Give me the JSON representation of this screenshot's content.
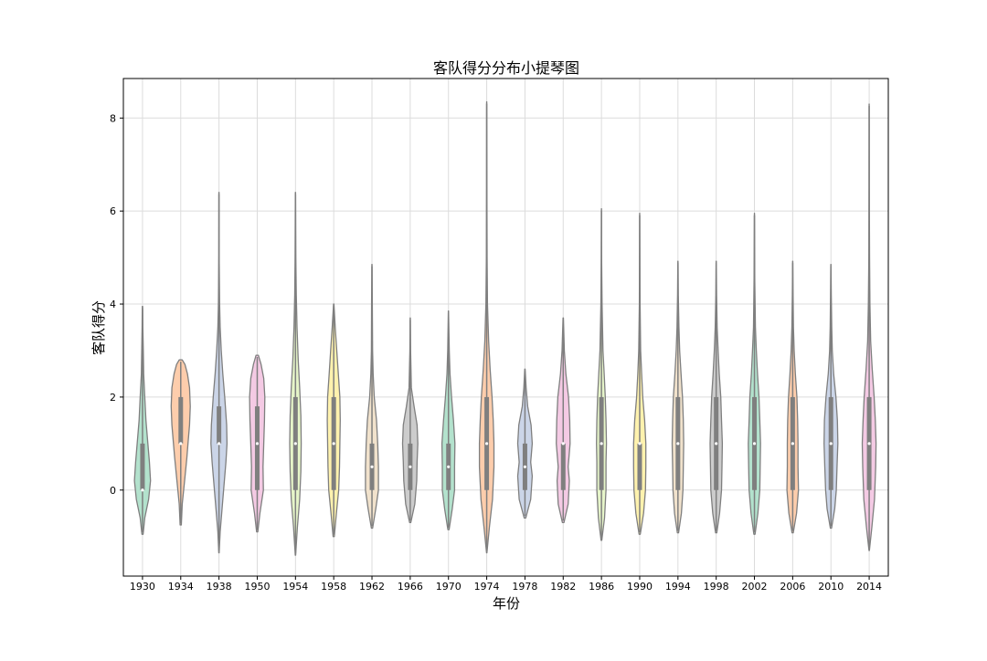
{
  "chart_data": {
    "type": "violin",
    "title": "客队得分分布小提琴图",
    "xlabel": "年份",
    "ylabel": "客队得分",
    "ylim": [
      -1.85,
      8.85
    ],
    "yticks": [
      0,
      2,
      4,
      6,
      8
    ],
    "grid": true,
    "legend": "none",
    "categories": [
      "1930",
      "1934",
      "1938",
      "1950",
      "1954",
      "1958",
      "1962",
      "1966",
      "1970",
      "1974",
      "1978",
      "1982",
      "1986",
      "1990",
      "1994",
      "1998",
      "2002",
      "2006",
      "2010",
      "2014"
    ],
    "palette": [
      "#b3e2cd",
      "#fdcdac",
      "#cbd5e8",
      "#f4cae4",
      "#e6f5c9",
      "#fff2ae",
      "#f1e2cc",
      "#cccccc"
    ],
    "series": [
      {
        "category": "1930",
        "min": -0.95,
        "max": 3.95,
        "q1": 0,
        "median": 0,
        "q3": 1,
        "density": [
          [
            -0.95,
            0.03
          ],
          [
            -0.6,
            0.12
          ],
          [
            -0.2,
            0.32
          ],
          [
            0.2,
            0.42
          ],
          [
            0.6,
            0.36
          ],
          [
            1.0,
            0.28
          ],
          [
            1.5,
            0.18
          ],
          [
            2.0,
            0.12
          ],
          [
            2.5,
            0.06
          ],
          [
            3.0,
            0.04
          ],
          [
            3.5,
            0.02
          ],
          [
            3.95,
            0.01
          ]
        ]
      },
      {
        "category": "1934",
        "min": -0.75,
        "max": 2.8,
        "q1": 1,
        "median": 1,
        "q3": 2,
        "density": [
          [
            -0.75,
            0.03
          ],
          [
            -0.3,
            0.08
          ],
          [
            0.2,
            0.2
          ],
          [
            0.7,
            0.32
          ],
          [
            1.0,
            0.38
          ],
          [
            1.4,
            0.46
          ],
          [
            1.8,
            0.5
          ],
          [
            2.2,
            0.46
          ],
          [
            2.5,
            0.35
          ],
          [
            2.7,
            0.22
          ],
          [
            2.8,
            0.08
          ]
        ]
      },
      {
        "category": "1938",
        "min": -1.35,
        "max": 6.4,
        "q1": 1,
        "median": 1,
        "q3": 1.8,
        "density": [
          [
            -1.35,
            0.01
          ],
          [
            -0.9,
            0.06
          ],
          [
            -0.4,
            0.16
          ],
          [
            0.1,
            0.26
          ],
          [
            0.6,
            0.36
          ],
          [
            1.0,
            0.42
          ],
          [
            1.4,
            0.4
          ],
          [
            2.0,
            0.3
          ],
          [
            2.5,
            0.2
          ],
          [
            3.0,
            0.12
          ],
          [
            3.5,
            0.06
          ],
          [
            4.0,
            0.03
          ],
          [
            5.0,
            0.01
          ],
          [
            6.4,
            0.005
          ]
        ]
      },
      {
        "category": "1950",
        "min": -0.9,
        "max": 2.9,
        "q1": 0,
        "median": 1,
        "q3": 1.8,
        "density": [
          [
            -0.9,
            0.03
          ],
          [
            -0.5,
            0.14
          ],
          [
            0,
            0.32
          ],
          [
            0.5,
            0.3
          ],
          [
            1.0,
            0.34
          ],
          [
            1.5,
            0.38
          ],
          [
            2.0,
            0.4
          ],
          [
            2.4,
            0.34
          ],
          [
            2.7,
            0.2
          ],
          [
            2.9,
            0.06
          ]
        ]
      },
      {
        "category": "1954",
        "min": -1.4,
        "max": 6.4,
        "q1": 0,
        "median": 1,
        "q3": 2,
        "density": [
          [
            -1.4,
            0.01
          ],
          [
            -0.8,
            0.1
          ],
          [
            -0.2,
            0.22
          ],
          [
            0.4,
            0.28
          ],
          [
            1.0,
            0.3
          ],
          [
            1.6,
            0.28
          ],
          [
            2.2,
            0.22
          ],
          [
            2.8,
            0.14
          ],
          [
            3.5,
            0.08
          ],
          [
            4.2,
            0.04
          ],
          [
            5.0,
            0.02
          ],
          [
            6.4,
            0.005
          ]
        ]
      },
      {
        "category": "1958",
        "min": -1.0,
        "max": 4.0,
        "q1": 0,
        "median": 1,
        "q3": 2,
        "density": [
          [
            -1.0,
            0.03
          ],
          [
            -0.5,
            0.14
          ],
          [
            0,
            0.26
          ],
          [
            0.5,
            0.3
          ],
          [
            1.0,
            0.32
          ],
          [
            1.5,
            0.34
          ],
          [
            2.0,
            0.32
          ],
          [
            2.5,
            0.24
          ],
          [
            3.0,
            0.16
          ],
          [
            3.5,
            0.08
          ],
          [
            4.0,
            0.01
          ]
        ]
      },
      {
        "category": "1962",
        "min": -0.82,
        "max": 4.85,
        "q1": 0,
        "median": 0.5,
        "q3": 1,
        "density": [
          [
            -0.82,
            0.03
          ],
          [
            -0.4,
            0.2
          ],
          [
            0,
            0.34
          ],
          [
            0.5,
            0.34
          ],
          [
            1.0,
            0.3
          ],
          [
            1.5,
            0.24
          ],
          [
            2.0,
            0.12
          ],
          [
            2.5,
            0.06
          ],
          [
            3.0,
            0.03
          ],
          [
            4.0,
            0.02
          ],
          [
            4.85,
            0.005
          ]
        ]
      },
      {
        "category": "1966",
        "min": -0.7,
        "max": 3.7,
        "q1": 0,
        "median": 0.5,
        "q3": 1,
        "density": [
          [
            -0.7,
            0.03
          ],
          [
            -0.3,
            0.24
          ],
          [
            0.2,
            0.34
          ],
          [
            0.6,
            0.36
          ],
          [
            1.0,
            0.4
          ],
          [
            1.4,
            0.36
          ],
          [
            1.8,
            0.2
          ],
          [
            2.2,
            0.06
          ],
          [
            3.0,
            0.02
          ],
          [
            3.7,
            0.005
          ]
        ]
      },
      {
        "category": "1970",
        "min": -0.85,
        "max": 3.85,
        "q1": 0,
        "median": 0.5,
        "q3": 1,
        "density": [
          [
            -0.85,
            0.03
          ],
          [
            -0.4,
            0.2
          ],
          [
            0,
            0.32
          ],
          [
            0.5,
            0.32
          ],
          [
            1.0,
            0.34
          ],
          [
            1.5,
            0.26
          ],
          [
            2.0,
            0.16
          ],
          [
            2.5,
            0.08
          ],
          [
            3.0,
            0.04
          ],
          [
            3.85,
            0.005
          ]
        ]
      },
      {
        "category": "1974",
        "min": -1.35,
        "max": 8.35,
        "q1": 0,
        "median": 1,
        "q3": 2,
        "density": [
          [
            -1.35,
            0.01
          ],
          [
            -0.8,
            0.14
          ],
          [
            -0.2,
            0.3
          ],
          [
            0.5,
            0.38
          ],
          [
            1.0,
            0.38
          ],
          [
            1.5,
            0.34
          ],
          [
            2.0,
            0.28
          ],
          [
            2.6,
            0.18
          ],
          [
            3.2,
            0.1
          ],
          [
            4.0,
            0.04
          ],
          [
            5.0,
            0.02
          ],
          [
            6.5,
            0.01
          ],
          [
            8.35,
            0.003
          ]
        ]
      },
      {
        "category": "1978",
        "min": -0.6,
        "max": 2.6,
        "q1": 0,
        "median": 0.5,
        "q3": 1,
        "density": [
          [
            -0.6,
            0.04
          ],
          [
            -0.2,
            0.3
          ],
          [
            0.3,
            0.38
          ],
          [
            0.6,
            0.3
          ],
          [
            1.0,
            0.38
          ],
          [
            1.4,
            0.32
          ],
          [
            1.8,
            0.14
          ],
          [
            2.2,
            0.06
          ],
          [
            2.6,
            0.01
          ]
        ]
      },
      {
        "category": "1982",
        "min": -0.7,
        "max": 3.7,
        "q1": 0,
        "median": 1,
        "q3": 1,
        "density": [
          [
            -0.7,
            0.04
          ],
          [
            -0.3,
            0.26
          ],
          [
            0.2,
            0.32
          ],
          [
            0.5,
            0.26
          ],
          [
            1.0,
            0.36
          ],
          [
            1.5,
            0.34
          ],
          [
            2.0,
            0.28
          ],
          [
            2.5,
            0.14
          ],
          [
            3.0,
            0.06
          ],
          [
            3.7,
            0.01
          ]
        ]
      },
      {
        "category": "1986",
        "min": -1.08,
        "max": 6.05,
        "q1": 0,
        "median": 1,
        "q3": 2,
        "density": [
          [
            -1.08,
            0.02
          ],
          [
            -0.6,
            0.16
          ],
          [
            0,
            0.24
          ],
          [
            0.6,
            0.24
          ],
          [
            1.0,
            0.26
          ],
          [
            1.5,
            0.24
          ],
          [
            2.0,
            0.2
          ],
          [
            2.5,
            0.14
          ],
          [
            3.0,
            0.08
          ],
          [
            4.0,
            0.03
          ],
          [
            5.0,
            0.01
          ],
          [
            6.05,
            0.003
          ]
        ]
      },
      {
        "category": "1990",
        "min": -0.95,
        "max": 5.95,
        "q1": 0,
        "median": 1,
        "q3": 1,
        "density": [
          [
            -0.95,
            0.03
          ],
          [
            -0.5,
            0.2
          ],
          [
            0,
            0.3
          ],
          [
            0.5,
            0.32
          ],
          [
            1.0,
            0.32
          ],
          [
            1.5,
            0.26
          ],
          [
            2.0,
            0.16
          ],
          [
            2.5,
            0.1
          ],
          [
            3.0,
            0.05
          ],
          [
            4.0,
            0.02
          ],
          [
            5.95,
            0.003
          ]
        ]
      },
      {
        "category": "1994",
        "min": -0.92,
        "max": 4.92,
        "q1": 0,
        "median": 1,
        "q3": 2,
        "density": [
          [
            -0.92,
            0.03
          ],
          [
            -0.5,
            0.18
          ],
          [
            0,
            0.26
          ],
          [
            0.5,
            0.28
          ],
          [
            1.0,
            0.3
          ],
          [
            1.5,
            0.28
          ],
          [
            2.0,
            0.24
          ],
          [
            2.5,
            0.16
          ],
          [
            3.0,
            0.09
          ],
          [
            3.5,
            0.05
          ],
          [
            4.2,
            0.02
          ],
          [
            4.92,
            0.004
          ]
        ]
      },
      {
        "category": "1998",
        "min": -0.92,
        "max": 4.92,
        "q1": 0,
        "median": 1,
        "q3": 2,
        "density": [
          [
            -0.92,
            0.03
          ],
          [
            -0.5,
            0.18
          ],
          [
            0,
            0.28
          ],
          [
            0.5,
            0.3
          ],
          [
            1.0,
            0.32
          ],
          [
            1.5,
            0.28
          ],
          [
            2.0,
            0.24
          ],
          [
            2.5,
            0.16
          ],
          [
            3.0,
            0.1
          ],
          [
            3.5,
            0.05
          ],
          [
            4.2,
            0.02
          ],
          [
            4.92,
            0.004
          ]
        ]
      },
      {
        "category": "2002",
        "min": -0.95,
        "max": 5.95,
        "q1": 0,
        "median": 1,
        "q3": 2,
        "density": [
          [
            -0.95,
            0.03
          ],
          [
            -0.5,
            0.18
          ],
          [
            0,
            0.28
          ],
          [
            0.5,
            0.3
          ],
          [
            1.0,
            0.32
          ],
          [
            1.5,
            0.28
          ],
          [
            2.0,
            0.24
          ],
          [
            2.5,
            0.16
          ],
          [
            3.0,
            0.1
          ],
          [
            3.5,
            0.05
          ],
          [
            4.5,
            0.02
          ],
          [
            5.95,
            0.003
          ]
        ]
      },
      {
        "category": "2006",
        "min": -0.92,
        "max": 4.92,
        "q1": 0,
        "median": 1,
        "q3": 2,
        "density": [
          [
            -0.92,
            0.03
          ],
          [
            -0.5,
            0.2
          ],
          [
            0,
            0.3
          ],
          [
            0.5,
            0.28
          ],
          [
            1.0,
            0.28
          ],
          [
            1.5,
            0.26
          ],
          [
            2.0,
            0.22
          ],
          [
            2.5,
            0.14
          ],
          [
            3.0,
            0.08
          ],
          [
            3.5,
            0.04
          ],
          [
            4.2,
            0.02
          ],
          [
            4.92,
            0.004
          ]
        ]
      },
      {
        "category": "2010",
        "min": -0.82,
        "max": 4.85,
        "q1": 0,
        "median": 1,
        "q3": 2,
        "density": [
          [
            -0.82,
            0.03
          ],
          [
            -0.4,
            0.2
          ],
          [
            0,
            0.28
          ],
          [
            0.5,
            0.32
          ],
          [
            1.0,
            0.36
          ],
          [
            1.5,
            0.34
          ],
          [
            2.0,
            0.26
          ],
          [
            2.5,
            0.14
          ],
          [
            3.0,
            0.07
          ],
          [
            3.5,
            0.04
          ],
          [
            4.2,
            0.02
          ],
          [
            4.85,
            0.004
          ]
        ]
      },
      {
        "category": "2014",
        "min": -1.3,
        "max": 8.3,
        "q1": 0,
        "median": 1,
        "q3": 2,
        "density": [
          [
            -1.3,
            0.01
          ],
          [
            -0.8,
            0.14
          ],
          [
            -0.2,
            0.28
          ],
          [
            0.5,
            0.34
          ],
          [
            1.0,
            0.36
          ],
          [
            1.5,
            0.32
          ],
          [
            2.0,
            0.26
          ],
          [
            2.6,
            0.16
          ],
          [
            3.2,
            0.08
          ],
          [
            4.0,
            0.04
          ],
          [
            5.0,
            0.02
          ],
          [
            6.5,
            0.008
          ],
          [
            8.3,
            0.003
          ]
        ]
      }
    ]
  }
}
